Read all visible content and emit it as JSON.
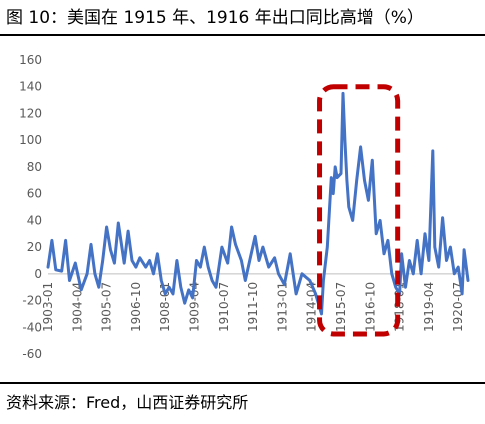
{
  "header": {
    "title": "图 10：美国在 1915 年、1916 年出口同比高增（%）"
  },
  "footer": {
    "source": "资料来源：Fred，山西证券研究所"
  },
  "colors": {
    "series": "#4472C4",
    "highlight": "#C00000"
  },
  "chart_data": {
    "type": "line",
    "title": "",
    "xlabel": "",
    "ylabel": "",
    "ylim": [
      -60,
      160
    ],
    "yticks": [
      -60,
      -40,
      -20,
      0,
      20,
      40,
      60,
      80,
      100,
      120,
      140,
      160
    ],
    "grid": false,
    "legend": "none",
    "xrange": [
      "1903-01",
      "1920-12"
    ],
    "xticks": [
      "1903-01",
      "1904-04",
      "1905-07",
      "1906-10",
      "1908-01",
      "1909-04",
      "1910-07",
      "1911-10",
      "1913-01",
      "1914-04",
      "1915-07",
      "1916-10",
      "1918-01",
      "1919-04",
      "1920-07"
    ],
    "series": [
      {
        "name": "",
        "anchors": [
          {
            "x": "1903-01",
            "y": 5
          },
          {
            "x": "1903-03",
            "y": 25
          },
          {
            "x": "1903-05",
            "y": 3
          },
          {
            "x": "1903-08",
            "y": 2
          },
          {
            "x": "1903-10",
            "y": 25
          },
          {
            "x": "1903-12",
            "y": -5
          },
          {
            "x": "1904-03",
            "y": 8
          },
          {
            "x": "1904-06",
            "y": -12
          },
          {
            "x": "1904-09",
            "y": 0
          },
          {
            "x": "1904-11",
            "y": 22
          },
          {
            "x": "1905-01",
            "y": 0
          },
          {
            "x": "1905-03",
            "y": -10
          },
          {
            "x": "1905-05",
            "y": 10
          },
          {
            "x": "1905-07",
            "y": 35
          },
          {
            "x": "1905-09",
            "y": 18
          },
          {
            "x": "1905-11",
            "y": 8
          },
          {
            "x": "1906-01",
            "y": 38
          },
          {
            "x": "1906-04",
            "y": 8
          },
          {
            "x": "1906-06",
            "y": 32
          },
          {
            "x": "1906-08",
            "y": 10
          },
          {
            "x": "1906-10",
            "y": 5
          },
          {
            "x": "1906-12",
            "y": 12
          },
          {
            "x": "1907-03",
            "y": 5
          },
          {
            "x": "1907-05",
            "y": 10
          },
          {
            "x": "1907-07",
            "y": 0
          },
          {
            "x": "1907-09",
            "y": 15
          },
          {
            "x": "1907-11",
            "y": -5
          },
          {
            "x": "1908-01",
            "y": -15
          },
          {
            "x": "1908-03",
            "y": -10
          },
          {
            "x": "1908-05",
            "y": -15
          },
          {
            "x": "1908-07",
            "y": 10
          },
          {
            "x": "1908-09",
            "y": -10
          },
          {
            "x": "1908-11",
            "y": -22
          },
          {
            "x": "1909-01",
            "y": -12
          },
          {
            "x": "1909-03",
            "y": -18
          },
          {
            "x": "1909-05",
            "y": 10
          },
          {
            "x": "1909-07",
            "y": 5
          },
          {
            "x": "1909-09",
            "y": 20
          },
          {
            "x": "1909-11",
            "y": 5
          },
          {
            "x": "1910-01",
            "y": -5
          },
          {
            "x": "1910-03",
            "y": -10
          },
          {
            "x": "1910-06",
            "y": 20
          },
          {
            "x": "1910-09",
            "y": 8
          },
          {
            "x": "1910-11",
            "y": 35
          },
          {
            "x": "1911-01",
            "y": 22
          },
          {
            "x": "1911-04",
            "y": 10
          },
          {
            "x": "1911-06",
            "y": -5
          },
          {
            "x": "1911-09",
            "y": 15
          },
          {
            "x": "1911-11",
            "y": 28
          },
          {
            "x": "1912-01",
            "y": 10
          },
          {
            "x": "1912-03",
            "y": 20
          },
          {
            "x": "1912-06",
            "y": 5
          },
          {
            "x": "1912-09",
            "y": 12
          },
          {
            "x": "1912-11",
            "y": 0
          },
          {
            "x": "1913-02",
            "y": -8
          },
          {
            "x": "1913-05",
            "y": 15
          },
          {
            "x": "1913-08",
            "y": -15
          },
          {
            "x": "1913-11",
            "y": 0
          },
          {
            "x": "1914-03",
            "y": -5
          },
          {
            "x": "1914-06",
            "y": -15
          },
          {
            "x": "1914-09",
            "y": -30
          },
          {
            "x": "1914-10",
            "y": -5
          },
          {
            "x": "1914-12",
            "y": 20
          },
          {
            "x": "1915-02",
            "y": 72
          },
          {
            "x": "1915-03",
            "y": 60
          },
          {
            "x": "1915-04",
            "y": 80
          },
          {
            "x": "1915-05",
            "y": 72
          },
          {
            "x": "1915-07",
            "y": 75
          },
          {
            "x": "1915-08",
            "y": 135
          },
          {
            "x": "1915-09",
            "y": 100
          },
          {
            "x": "1915-10",
            "y": 70
          },
          {
            "x": "1915-11",
            "y": 50
          },
          {
            "x": "1916-01",
            "y": 40
          },
          {
            "x": "1916-03",
            "y": 70
          },
          {
            "x": "1916-05",
            "y": 95
          },
          {
            "x": "1916-07",
            "y": 70
          },
          {
            "x": "1916-09",
            "y": 55
          },
          {
            "x": "1916-11",
            "y": 85
          },
          {
            "x": "1917-01",
            "y": 30
          },
          {
            "x": "1917-03",
            "y": 40
          },
          {
            "x": "1917-05",
            "y": 15
          },
          {
            "x": "1917-07",
            "y": 25
          },
          {
            "x": "1917-09",
            "y": 0
          },
          {
            "x": "1917-11",
            "y": -10
          },
          {
            "x": "1918-01",
            "y": -15
          },
          {
            "x": "1918-02",
            "y": 15
          },
          {
            "x": "1918-04",
            "y": -10
          },
          {
            "x": "1918-06",
            "y": 10
          },
          {
            "x": "1918-08",
            "y": 0
          },
          {
            "x": "1918-10",
            "y": 25
          },
          {
            "x": "1918-12",
            "y": 0
          },
          {
            "x": "1919-02",
            "y": 30
          },
          {
            "x": "1919-04",
            "y": 10
          },
          {
            "x": "1919-06",
            "y": 92
          },
          {
            "x": "1919-07",
            "y": 20
          },
          {
            "x": "1919-09",
            "y": 5
          },
          {
            "x": "1919-11",
            "y": 42
          },
          {
            "x": "1920-01",
            "y": 10
          },
          {
            "x": "1920-03",
            "y": 20
          },
          {
            "x": "1920-05",
            "y": 0
          },
          {
            "x": "1920-07",
            "y": 5
          },
          {
            "x": "1920-09",
            "y": -15
          },
          {
            "x": "1920-10",
            "y": 18
          },
          {
            "x": "1920-12",
            "y": -5
          }
        ]
      }
    ],
    "highlight_range": {
      "x0": "1914-08",
      "x1": "1917-12",
      "y0": -45,
      "y1": 140,
      "style": "dashed box"
    }
  }
}
